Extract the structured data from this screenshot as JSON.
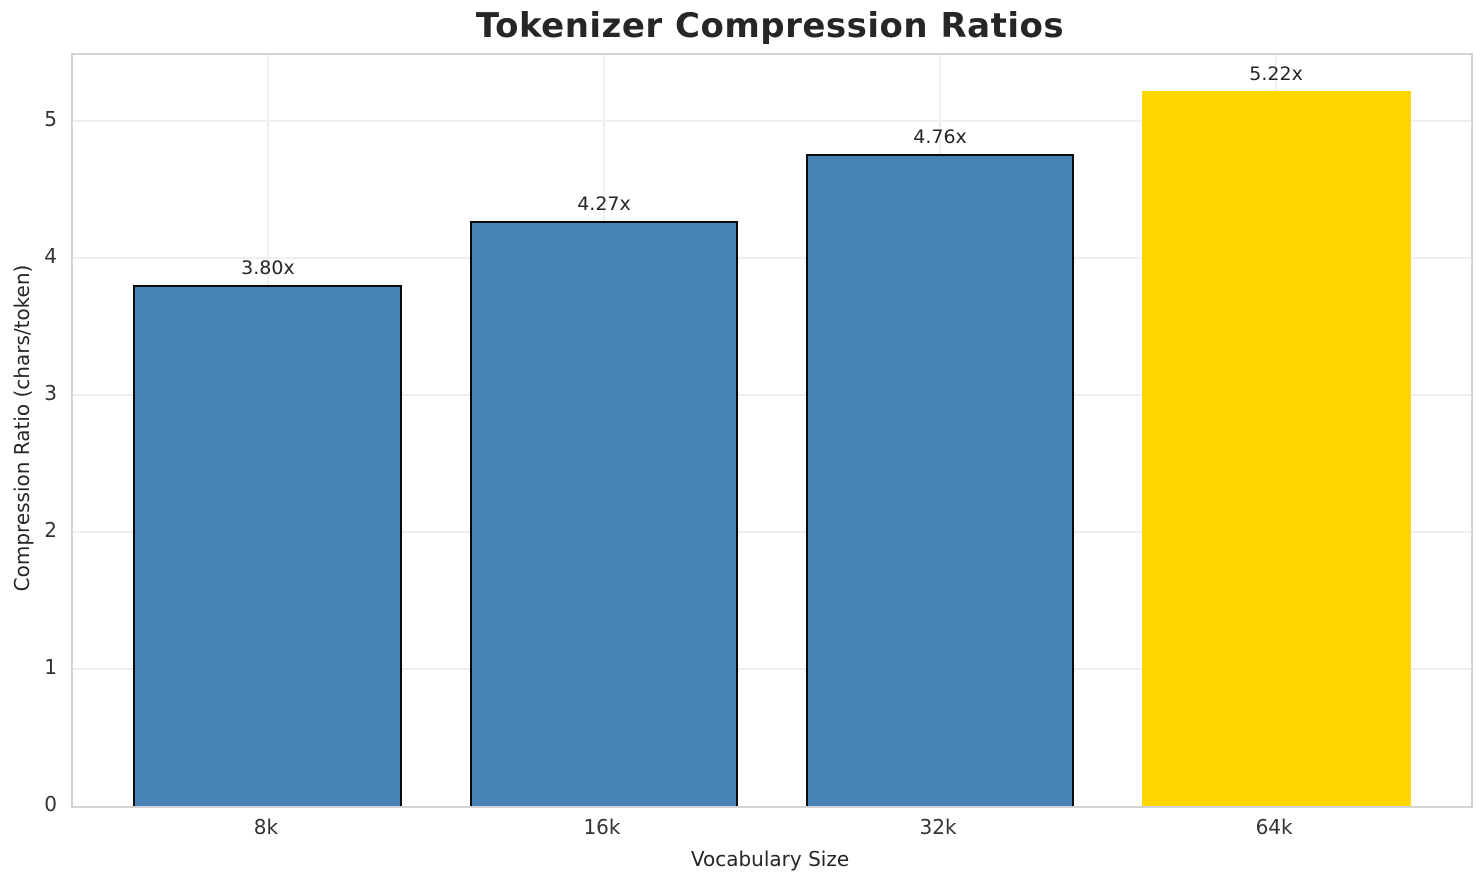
{
  "chart_data": {
    "type": "bar",
    "title": "Tokenizer Compression Ratios",
    "xlabel": "Vocabulary Size",
    "ylabel": "Compression Ratio (chars/token)",
    "categories": [
      "8k",
      "16k",
      "32k",
      "64k"
    ],
    "values": [
      3.8,
      4.27,
      4.76,
      5.22
    ],
    "bar_labels": [
      "3.80x",
      "4.27x",
      "4.76x",
      "5.22x"
    ],
    "yticks": [
      0,
      1,
      2,
      3,
      4,
      5
    ],
    "ylim": [
      0,
      5.48
    ],
    "grid": true,
    "legend_position": "none",
    "highlight_index": 3,
    "bar_edge_visible": [
      true,
      true,
      true,
      false
    ],
    "colors": {
      "bar_default": "#4682B4",
      "bar_highlight": "#FFD700",
      "bar_edge": "#0a0a0a",
      "grid": "#efefef",
      "spine": "#d3d3d3",
      "text": "#262626",
      "background": "#ffffff"
    }
  }
}
